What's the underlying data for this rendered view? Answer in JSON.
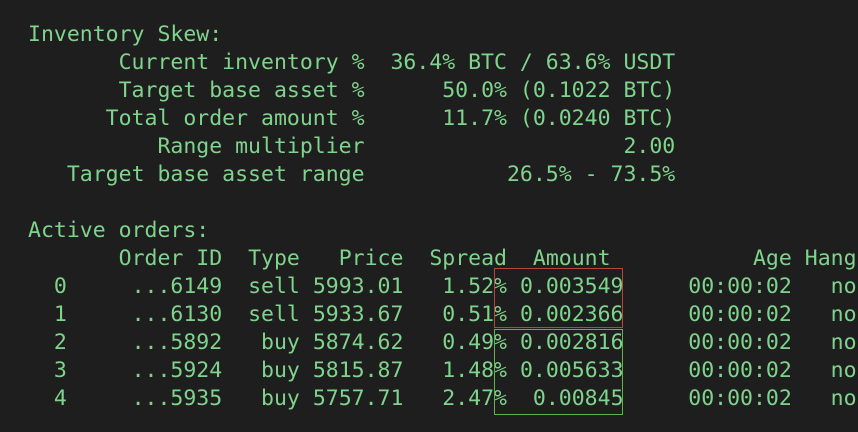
{
  "inventory": {
    "header": "Inventory Skew:",
    "rows": [
      {
        "label": "Current inventory %",
        "value": "36.4% BTC / 63.6% USDT"
      },
      {
        "label": "Target base asset %",
        "value": "50.0% (0.1022 BTC)"
      },
      {
        "label": "Total order amount %",
        "value": "11.7% (0.0240 BTC)"
      },
      {
        "label": "Range multiplier",
        "value": "2.00"
      },
      {
        "label": "Target base asset range",
        "value": "26.5% - 73.5%"
      }
    ]
  },
  "orders": {
    "header": "Active orders:",
    "columns": [
      "Order ID",
      "Type",
      "Price",
      "Spread",
      "Amount",
      "Age",
      "Hang"
    ],
    "rows": [
      {
        "idx": "0",
        "id": "...6149",
        "type": "sell",
        "price": "5993.01",
        "spread": "1.52%",
        "amount": "0.003549",
        "age": "00:00:02",
        "hang": "no"
      },
      {
        "idx": "1",
        "id": "...6130",
        "type": "sell",
        "price": "5933.67",
        "spread": "0.51%",
        "amount": "0.002366",
        "age": "00:00:02",
        "hang": "no"
      },
      {
        "idx": "2",
        "id": "...5892",
        "type": "buy",
        "price": "5874.62",
        "spread": "0.49%",
        "amount": "0.002816",
        "age": "00:00:02",
        "hang": "no"
      },
      {
        "idx": "3",
        "id": "...5924",
        "type": "buy",
        "price": "5815.87",
        "spread": "1.48%",
        "amount": "0.005633",
        "age": "00:00:02",
        "hang": "no"
      },
      {
        "idx": "4",
        "id": "...5935",
        "type": "buy",
        "price": "5757.71",
        "spread": "2.47%",
        "amount": "0.00845",
        "age": "00:00:02",
        "hang": "no"
      }
    ]
  },
  "colors": {
    "background": "#1e1e1e",
    "text": "#7fd48c",
    "sell_highlight": "#b8473a",
    "buy_highlight": "#5fb54a"
  }
}
